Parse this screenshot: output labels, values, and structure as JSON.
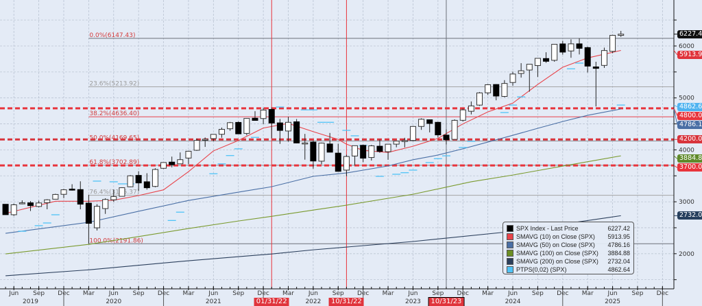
{
  "chart_data": {
    "type": "candlestick",
    "title": "",
    "y_axis": {
      "min": 1400,
      "max": 6800,
      "scale": "linear",
      "position": "right",
      "tick_labels": [
        "2000",
        "3000",
        "4000",
        "5000",
        "6000"
      ]
    },
    "x_axis": {
      "month_labels": [
        {
          "label": "Jun",
          "at": "2019-06"
        },
        {
          "label": "Sep",
          "at": "2019-09"
        },
        {
          "label": "Dec",
          "at": "2019-12"
        },
        {
          "label": "Mar",
          "at": "2020-03"
        },
        {
          "label": "Jun",
          "at": "2020-06"
        },
        {
          "label": "Sep",
          "at": "2020-09"
        },
        {
          "label": "Dec",
          "at": "2020-12"
        },
        {
          "label": "Mar",
          "at": "2021-03"
        },
        {
          "label": "Jun",
          "at": "2021-06"
        },
        {
          "label": "Sep",
          "at": "2021-09"
        },
        {
          "label": "Dec",
          "at": "2021-12"
        },
        {
          "label": "Mar",
          "at": "2022-03"
        },
        {
          "label": "Jun",
          "at": "2022-06"
        },
        {
          "label": "Sep",
          "at": "2022-09"
        },
        {
          "label": "Dec",
          "at": "2022-12"
        },
        {
          "label": "Mar",
          "at": "2023-03"
        },
        {
          "label": "Jun",
          "at": "2023-06"
        },
        {
          "label": "Sep",
          "at": "2023-09"
        },
        {
          "label": "Dec",
          "at": "2023-12"
        },
        {
          "label": "Mar",
          "at": "2024-03"
        },
        {
          "label": "Jun",
          "at": "2024-06"
        },
        {
          "label": "Sep",
          "at": "2024-09"
        },
        {
          "label": "Dec",
          "at": "2024-12"
        },
        {
          "label": "Mar",
          "at": "2025-03"
        },
        {
          "label": "Jun",
          "at": "2025-06"
        },
        {
          "label": "Sep",
          "at": "2025-09"
        },
        {
          "label": "Dec",
          "at": "2025-12"
        }
      ],
      "year_labels": [
        {
          "label": "2019",
          "at": "2019-08"
        },
        {
          "label": "2020",
          "at": "2020-06"
        },
        {
          "label": "2021",
          "at": "2021-06"
        },
        {
          "label": "2022",
          "at": "2022-06"
        },
        {
          "label": "2023",
          "at": "2023-06"
        },
        {
          "label": "2024",
          "at": "2024-06"
        },
        {
          "label": "2025",
          "at": "2025-06"
        }
      ]
    },
    "grid": true,
    "candles": [
      [
        "2019-05",
        2952,
        2954,
        2750,
        2752
      ],
      [
        "2019-06",
        2751,
        2964,
        2728,
        2942
      ],
      [
        "2019-07",
        2971,
        3028,
        2952,
        2980
      ],
      [
        "2019-08",
        2980,
        3014,
        2822,
        2926
      ],
      [
        "2019-09",
        2910,
        3022,
        2892,
        2977
      ],
      [
        "2019-10",
        2983,
        3050,
        2856,
        3038
      ],
      [
        "2019-11",
        3050,
        3154,
        3050,
        3141
      ],
      [
        "2019-12",
        3144,
        3248,
        3070,
        3231
      ],
      [
        "2020-01",
        3244,
        3338,
        3215,
        3226
      ],
      [
        "2020-02",
        3235,
        3394,
        2855,
        2954
      ],
      [
        "2020-03",
        2974,
        3136,
        2192,
        2585
      ],
      [
        "2020-04",
        2499,
        2954,
        2447,
        2912
      ],
      [
        "2020-05",
        2869,
        3068,
        2767,
        3044
      ],
      [
        "2020-06",
        3038,
        3233,
        2999,
        3100
      ],
      [
        "2020-07",
        3106,
        3280,
        3101,
        3271
      ],
      [
        "2020-08",
        3289,
        3514,
        3280,
        3500
      ],
      [
        "2020-09",
        3508,
        3588,
        3210,
        3363
      ],
      [
        "2020-10",
        3385,
        3550,
        3234,
        3270
      ],
      [
        "2020-11",
        3296,
        3646,
        3279,
        3622
      ],
      [
        "2020-12",
        3645,
        3760,
        3633,
        3756
      ],
      [
        "2021-01",
        3764,
        3870,
        3663,
        3714
      ],
      [
        "2021-02",
        3731,
        3950,
        3725,
        3811
      ],
      [
        "2021-03",
        3842,
        3983,
        3723,
        3973
      ],
      [
        "2021-04",
        3992,
        4218,
        3980,
        4181
      ],
      [
        "2021-05",
        4191,
        4238,
        4057,
        4204
      ],
      [
        "2021-06",
        4216,
        4302,
        4164,
        4298
      ],
      [
        "2021-07",
        4300,
        4429,
        4233,
        4395
      ],
      [
        "2021-08",
        4406,
        4537,
        4368,
        4523
      ],
      [
        "2021-09",
        4528,
        4546,
        4306,
        4308
      ],
      [
        "2021-10",
        4317,
        4608,
        4279,
        4605
      ],
      [
        "2021-11",
        4610,
        4744,
        4560,
        4567
      ],
      [
        "2021-12",
        4603,
        4808,
        4495,
        4766
      ],
      [
        "2022-01",
        4778,
        4818,
        4222,
        4516
      ],
      [
        "2022-02",
        4519,
        4595,
        4115,
        4374
      ],
      [
        "2022-03",
        4363,
        4637,
        4157,
        4530
      ],
      [
        "2022-04",
        4540,
        4593,
        4124,
        4132
      ],
      [
        "2022-05",
        4131,
        4307,
        3811,
        4132
      ],
      [
        "2022-06",
        4149,
        4177,
        3637,
        3785
      ],
      [
        "2022-07",
        3782,
        4140,
        3721,
        4130
      ],
      [
        "2022-08",
        4113,
        4325,
        3955,
        3955
      ],
      [
        "2022-09",
        3937,
        4119,
        3585,
        3586
      ],
      [
        "2022-10",
        3610,
        3905,
        3492,
        3872
      ],
      [
        "2022-11",
        3881,
        4080,
        3699,
        4080
      ],
      [
        "2022-12",
        4087,
        4101,
        3764,
        3840
      ],
      [
        "2023-01",
        3853,
        4095,
        3794,
        4077
      ],
      [
        "2023-02",
        4070,
        4195,
        3943,
        3970
      ],
      [
        "2023-03",
        3964,
        4110,
        3809,
        4109
      ],
      [
        "2023-04",
        4110,
        4170,
        4049,
        4169
      ],
      [
        "2023-05",
        4166,
        4232,
        4048,
        4180
      ],
      [
        "2023-06",
        4181,
        4459,
        4166,
        4450
      ],
      [
        "2023-07",
        4451,
        4607,
        4385,
        4589
      ],
      [
        "2023-08",
        4579,
        4584,
        4336,
        4508
      ],
      [
        "2023-09",
        4530,
        4541,
        4238,
        4288
      ],
      [
        "2023-10",
        4284,
        4393,
        4104,
        4194
      ],
      [
        "2023-11",
        4202,
        4587,
        4197,
        4568
      ],
      [
        "2023-12",
        4569,
        4794,
        4547,
        4770
      ],
      [
        "2024-01",
        4743,
        4932,
        4682,
        4846
      ],
      [
        "2024-02",
        4862,
        5112,
        4845,
        5096
      ],
      [
        "2024-03",
        5098,
        5265,
        5056,
        5254
      ],
      [
        "2024-04",
        5258,
        5264,
        4954,
        5036
      ],
      [
        "2024-05",
        5029,
        5342,
        5012,
        5278
      ],
      [
        "2024-06",
        5297,
        5506,
        5235,
        5460
      ],
      [
        "2024-07",
        5471,
        5669,
        5391,
        5522
      ],
      [
        "2024-08",
        5537,
        5651,
        5120,
        5648
      ],
      [
        "2024-09",
        5623,
        5768,
        5403,
        5762
      ],
      [
        "2024-10",
        5758,
        5879,
        5675,
        5705
      ],
      [
        "2024-11",
        5724,
        6025,
        5697,
        6032
      ],
      [
        "2024-12",
        6040,
        6100,
        5832,
        5882
      ],
      [
        "2025-01",
        5904,
        6128,
        5773,
        6041
      ],
      [
        "2025-02",
        6041,
        6147,
        5837,
        5955
      ],
      [
        "2025-03",
        5969,
        5987,
        5489,
        5612
      ],
      [
        "2025-04",
        5597,
        5696,
        4835,
        5569
      ],
      [
        "2025-05",
        5626,
        5968,
        5578,
        5912
      ],
      [
        "2025-06",
        5897,
        6215,
        5862,
        6205
      ],
      [
        "2025-07",
        6204,
        6290,
        6175,
        6227
      ]
    ],
    "series": [
      {
        "name": "SMAVG (10)  on Close (SPX)",
        "color": "#e8434a",
        "points": [
          [
            "2019-05",
            2777
          ],
          [
            "2019-11",
            3010
          ],
          [
            "2020-03",
            3010
          ],
          [
            "2020-06",
            3030
          ],
          [
            "2020-09",
            3120
          ],
          [
            "2020-12",
            3230
          ],
          [
            "2021-03",
            3580
          ],
          [
            "2021-06",
            3980
          ],
          [
            "2021-09",
            4180
          ],
          [
            "2021-12",
            4420
          ],
          [
            "2022-03",
            4510
          ],
          [
            "2022-06",
            4350
          ],
          [
            "2022-09",
            4200
          ],
          [
            "2022-10",
            4110
          ],
          [
            "2022-12",
            3990
          ],
          [
            "2023-03",
            3950
          ],
          [
            "2023-06",
            4070
          ],
          [
            "2023-09",
            4220
          ],
          [
            "2023-12",
            4500
          ],
          [
            "2024-03",
            4730
          ],
          [
            "2024-06",
            4900
          ],
          [
            "2024-09",
            5260
          ],
          [
            "2024-12",
            5590
          ],
          [
            "2025-03",
            5770
          ],
          [
            "2025-07",
            5913.95
          ]
        ]
      },
      {
        "name": "SMAVG (50)  on Close (SPX)",
        "color": "#4a6fa5",
        "points": [
          [
            "2019-05",
            2393
          ],
          [
            "2020-03",
            2605
          ],
          [
            "2020-09",
            2817
          ],
          [
            "2021-03",
            3025
          ],
          [
            "2021-09",
            3185
          ],
          [
            "2022-01",
            3290
          ],
          [
            "2022-06",
            3490
          ],
          [
            "2022-10",
            3555
          ],
          [
            "2023-03",
            3690
          ],
          [
            "2023-06",
            3810
          ],
          [
            "2023-09",
            3900
          ],
          [
            "2023-12",
            4020
          ],
          [
            "2024-03",
            4150
          ],
          [
            "2024-06",
            4280
          ],
          [
            "2024-09",
            4415
          ],
          [
            "2024-12",
            4545
          ],
          [
            "2025-03",
            4665
          ],
          [
            "2025-07",
            4786.16
          ]
        ]
      },
      {
        "name": "SMAVG (100)  on Close (SPX)",
        "color": "#7a9a2e",
        "points": [
          [
            "2019-05",
            1997
          ],
          [
            "2020-03",
            2180
          ],
          [
            "2020-09",
            2330
          ],
          [
            "2021-03",
            2485
          ],
          [
            "2021-09",
            2630
          ],
          [
            "2022-01",
            2720
          ],
          [
            "2022-06",
            2840
          ],
          [
            "2022-10",
            2935
          ],
          [
            "2023-06",
            3145
          ],
          [
            "2024-01",
            3385
          ],
          [
            "2024-06",
            3515
          ],
          [
            "2025-01",
            3715
          ],
          [
            "2025-07",
            3884.88
          ]
        ]
      },
      {
        "name": "SMAVG (200)  on Close (SPX)",
        "color": "#2b3f5c",
        "points": [
          [
            "2019-05",
            1575
          ],
          [
            "2020-03",
            1690
          ],
          [
            "2021-03",
            1865
          ],
          [
            "2022-01",
            1995
          ],
          [
            "2022-06",
            2075
          ],
          [
            "2023-06",
            2235
          ],
          [
            "2024-06",
            2430
          ],
          [
            "2025-07",
            2732.04
          ]
        ]
      }
    ],
    "ptps": {
      "name": "PTPS(0,02) (SPX)",
      "color": "#4fc3f7",
      "points": [
        [
          "2019-07",
          2433
        ],
        [
          "2019-09",
          2540
        ],
        [
          "2019-10",
          2592
        ],
        [
          "2019-11",
          2750
        ],
        [
          "2020-04",
          3398
        ],
        [
          "2020-06",
          3385
        ],
        [
          "2020-07",
          3345
        ],
        [
          "2020-08",
          3345
        ],
        [
          "2021-01",
          2640
        ],
        [
          "2021-02",
          2800
        ],
        [
          "2021-06",
          3540
        ],
        [
          "2021-07",
          3730
        ],
        [
          "2021-08",
          3890
        ],
        [
          "2021-09",
          4020
        ],
        [
          "2021-11",
          4240
        ],
        [
          "2022-02",
          4824
        ],
        [
          "2022-05",
          4770
        ],
        [
          "2022-06",
          4770
        ],
        [
          "2022-07",
          4530
        ],
        [
          "2022-08",
          4530
        ],
        [
          "2022-10",
          4375
        ],
        [
          "2022-11",
          4270
        ],
        [
          "2022-12",
          4085
        ],
        [
          "2023-02",
          3490
        ],
        [
          "2023-04",
          3530
        ],
        [
          "2023-05",
          3560
        ],
        [
          "2023-06",
          3610
        ],
        [
          "2023-08",
          3755
        ],
        [
          "2023-09",
          3830
        ],
        [
          "2023-10",
          3885
        ],
        [
          "2023-12",
          4045
        ],
        [
          "2024-01",
          4165
        ],
        [
          "2024-05",
          4718
        ],
        [
          "2024-06",
          4862
        ],
        [
          "2024-07",
          5020
        ],
        [
          "2025-01",
          5560
        ],
        [
          "2025-02",
          5670
        ],
        [
          "2025-07",
          4862.64
        ]
      ]
    },
    "fibonacci": {
      "anchor_start": "2020-03",
      "levels": [
        {
          "label": "0.0%(6147.43)",
          "value": 6147.43,
          "color": "#d23b3b",
          "line": "#6b6f78"
        },
        {
          "label": "23.6%(5213.92)",
          "value": 5213.92,
          "color": "#9a9a9a",
          "line": "#a5a5a5"
        },
        {
          "label": "38.2%(4636.40)",
          "value": 4636.4,
          "color": "#d23b3b",
          "line": "#e8434a"
        },
        {
          "label": "50.0%(4169.65)",
          "value": 4169.65,
          "color": "#d23b3b",
          "line": "#8a8d94"
        },
        {
          "label": "61.8%(3702.89)",
          "value": 3702.89,
          "color": "#d23b3b",
          "line": "#8a8d94"
        },
        {
          "label": "76.4%(3125.37)",
          "value": 3125.37,
          "color": "#9a9a9a",
          "line": "#a5a5a5"
        },
        {
          "label": "100.0%(2191.86)",
          "value": 2191.86,
          "color": "#d23b3b",
          "line": "#6b6f78"
        }
      ]
    },
    "horizontal_lines": [
      {
        "value": 4800.0,
        "label": "4800.00",
        "color": "#e8343c"
      },
      {
        "value": 4200.0,
        "label": "4200.00",
        "color": "#d8343c"
      },
      {
        "value": 3700.0,
        "label": "3700.00",
        "color": "#e8343c"
      }
    ],
    "vertical_lines": [
      {
        "at": "2022-01",
        "label": "01/31/22",
        "color": "#e8343c"
      },
      {
        "at": "2022-10",
        "label": "10/31/22",
        "color": "#e8343c"
      },
      {
        "at": "2023-10",
        "label": "10/31/23",
        "color": "#6b6f78"
      }
    ],
    "price_tags": [
      {
        "value": 6227.42,
        "label": "6227.42",
        "color": "#111111"
      },
      {
        "value": 5913.95,
        "label": "5913.95",
        "color": "#e0343c"
      },
      {
        "value": 4862.64,
        "label": "4862.64",
        "color": "#4fb3f0"
      },
      {
        "value": 4786.16,
        "label": "4786.16",
        "color": "#4a6fa5"
      },
      {
        "value": 3884.88,
        "label": "3884.88",
        "color": "#5f8a2a"
      },
      {
        "value": 2732.04,
        "label": "2732.04",
        "color": "#27405e"
      }
    ],
    "legend": {
      "position": "bottom-right",
      "items": [
        {
          "name": "SPX Index - Last Price",
          "value": "6227.42",
          "color": "#000000"
        },
        {
          "name": "SMAVG (10)  on Close (SPX)",
          "value": "5913.95",
          "color": "#e8434a"
        },
        {
          "name": "SMAVG (50)  on Close (SPX)",
          "value": "4786.16",
          "color": "#4a6fa5"
        },
        {
          "name": "SMAVG (100)  on Close (SPX)",
          "value": "3884.88",
          "color": "#6b8e23"
        },
        {
          "name": "SMAVG (200)  on Close (SPX)",
          "value": "2732.04",
          "color": "#2b3f5c"
        },
        {
          "name": "PTPS(0,02) (SPX)",
          "value": "4862.64",
          "color": "#4fc3f7"
        }
      ]
    }
  }
}
